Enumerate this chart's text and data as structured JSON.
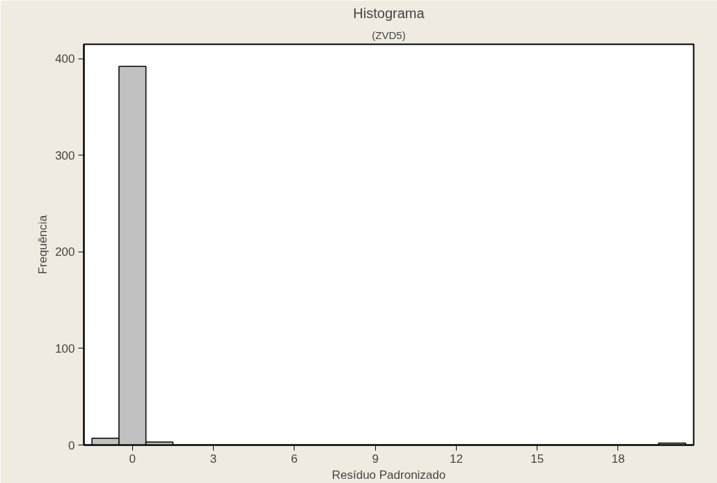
{
  "chart_data": {
    "type": "histogram",
    "title": "Histograma",
    "subtitle": "(ZVD5)",
    "xlabel": "Resíduo Padronizado",
    "ylabel": "Frequência",
    "bins": [
      -1.5,
      -0.5,
      0.5,
      1.5,
      2.5,
      3.5,
      4.5,
      5.5,
      6.5,
      7.5,
      8.5,
      9.5,
      10.5,
      11.5,
      12.5,
      13.5,
      14.5,
      15.5,
      16.5,
      17.5,
      18.5,
      19.5,
      20.5
    ],
    "values": [
      7,
      392,
      3,
      0,
      0,
      0,
      0,
      0,
      0,
      0,
      0,
      0,
      0,
      0,
      0,
      0,
      0,
      0,
      0,
      0,
      0,
      2
    ],
    "color": "#c0c0c0",
    "xlim": [
      -1.8,
      20.8
    ],
    "xticks": [
      0,
      3,
      6,
      9,
      12,
      15,
      18
    ],
    "ylim": [
      0,
      415
    ],
    "yticks": [
      0,
      100,
      200,
      300,
      400
    ],
    "grid": false
  }
}
